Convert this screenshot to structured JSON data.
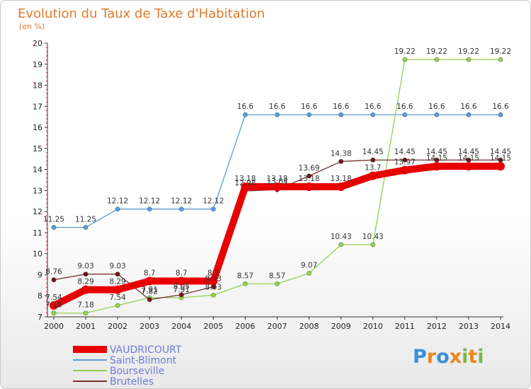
{
  "chart_data": {
    "type": "line",
    "title": "Evolution du Taux de Taxe d'Habitation",
    "subtitle": "(en %)",
    "xlabel": "",
    "ylabel": "",
    "ylim": [
      7,
      20
    ],
    "yticks": [
      "7",
      "8",
      "9",
      "10",
      "11",
      "12",
      "13",
      "14",
      "15",
      "16",
      "17",
      "18",
      "19",
      "20"
    ],
    "categories": [
      "2000",
      "2001",
      "2002",
      "2003",
      "2004",
      "2005",
      "2006",
      "2007",
      "2008",
      "2009",
      "2010",
      "2011",
      "2012",
      "2013",
      "2014"
    ],
    "series": [
      {
        "name": "VAUDRICOURT",
        "color": "#e80000",
        "values": [
          7.54,
          8.29,
          8.29,
          8.7,
          8.7,
          8.7,
          13.18,
          13.18,
          13.18,
          13.18,
          13.7,
          13.97,
          14.15,
          14.15,
          14.15
        ],
        "labels": [
          "7.54",
          "8.29",
          "8.29",
          "8.7",
          "8.7",
          "8.7",
          "13.18",
          "13.18",
          "13.18",
          "13.18",
          "13.7",
          "13.97",
          "14.15",
          "14.15",
          "14.15"
        ]
      },
      {
        "name": "Saint-Blimont",
        "color": "#5b9bd5",
        "values": [
          11.25,
          11.25,
          12.12,
          12.12,
          12.12,
          12.12,
          16.6,
          16.6,
          16.6,
          16.6,
          16.6,
          16.6,
          16.6,
          16.6,
          16.6
        ],
        "labels": [
          "11.25",
          "11.25",
          "12.12",
          "12.12",
          "12.12",
          "12.12",
          "16.6",
          "16.6",
          "16.6",
          "16.6",
          "16.6",
          "16.6",
          "16.6",
          "16.6",
          "16.6"
        ]
      },
      {
        "name": "Bourseville",
        "color": "#92d050",
        "values": [
          7.18,
          7.18,
          7.54,
          7.91,
          7.91,
          8.03,
          8.57,
          8.57,
          9.07,
          10.43,
          10.43,
          19.22,
          19.22,
          19.22,
          19.22
        ],
        "labels": [
          "7.18",
          "7.18",
          "7.54",
          "7.91",
          "7.91",
          "8.03",
          "8.57",
          "8.57",
          "9.07",
          "10.43",
          "10.43",
          "19.22",
          "19.22",
          "19.22",
          "19.22"
        ]
      },
      {
        "name": "Brutelles",
        "color": "#7b3030",
        "values": [
          8.76,
          9.03,
          9.03,
          7.82,
          8.05,
          8.43,
          12.98,
          13.04,
          13.69,
          14.38,
          14.45,
          14.45,
          14.45,
          14.45,
          14.45
        ],
        "labels": [
          "8.76",
          "9.03",
          "9.03",
          "7.82",
          "8.05",
          "8.43",
          "12.98",
          "13.04",
          "13.69",
          "14.38",
          "14.45",
          "14.45",
          "14.45",
          "14.45",
          "14.45"
        ]
      }
    ],
    "legend": [
      "VAUDRICOURT",
      "Saint-Blimont",
      "Bourseville",
      "Brutelles"
    ],
    "legend_position": "bottom-left",
    "grid": false
  },
  "logo": {
    "text": "Proxiti",
    "letters": [
      "P",
      "r",
      "o",
      "x",
      "i",
      "t",
      "i"
    ],
    "colors": [
      "#3b8fd6",
      "#e8891d",
      "#3b8fd6",
      "#e8891d",
      "#7ab648",
      "#e8891d",
      "#7ab648"
    ]
  }
}
